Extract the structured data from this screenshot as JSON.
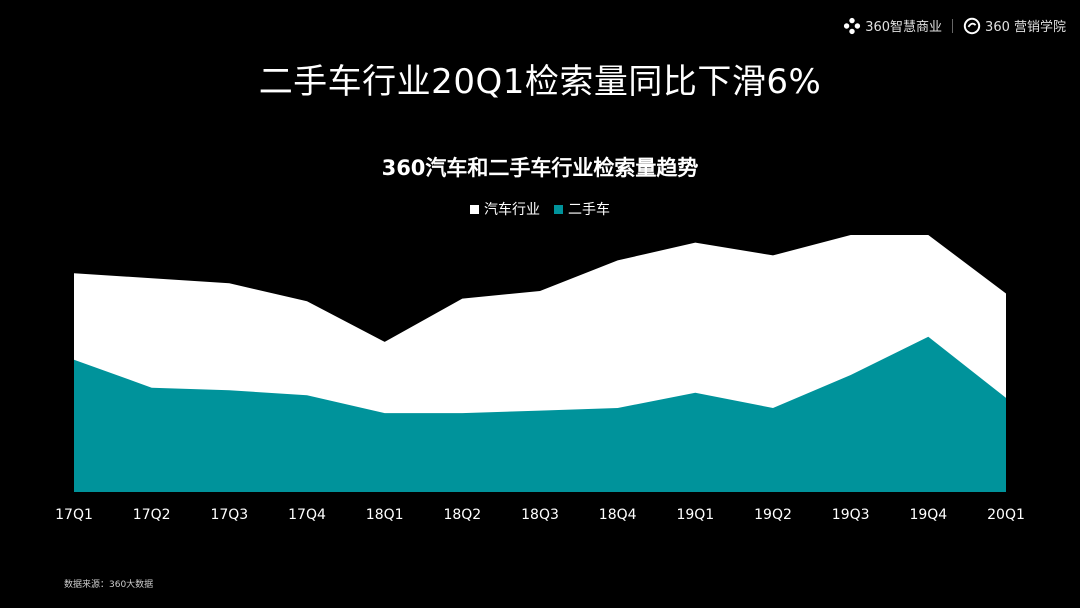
{
  "brand": {
    "left_label": "360智慧商业",
    "right_label": "360 营销学院",
    "icon_left": "flower-logo-icon",
    "icon_right": "ring-logo-icon"
  },
  "title": "二手车行业20Q1检索量同比下滑6%",
  "source": "数据来源：360大数据",
  "colors": {
    "background": "#000000",
    "auto": "#ffffff",
    "used": "#00939b"
  },
  "chart_data": {
    "type": "area",
    "title": "360汽车和二手车行业检索量趋势",
    "categories": [
      "17Q1",
      "17Q2",
      "17Q3",
      "17Q4",
      "18Q1",
      "18Q2",
      "18Q3",
      "18Q4",
      "19Q1",
      "19Q2",
      "19Q3",
      "19Q4",
      "20Q1"
    ],
    "series": [
      {
        "name": "汽车行业",
        "values": [
          86,
          84,
          82,
          75,
          59,
          76,
          79,
          91,
          98,
          93,
          101,
          101,
          78
        ]
      },
      {
        "name": "二手车",
        "values": [
          52,
          41,
          40,
          38,
          31,
          31,
          32,
          33,
          39,
          33,
          46,
          61,
          37
        ]
      }
    ],
    "ylim": [
      0,
      101
    ],
    "grid": false,
    "legend_position": "top-center",
    "stacked": false
  }
}
